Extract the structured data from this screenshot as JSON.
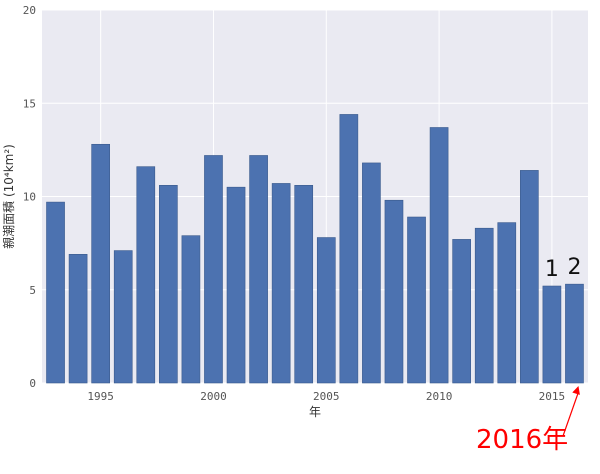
{
  "chart_data": {
    "type": "bar",
    "x": [
      1993,
      1994,
      1995,
      1996,
      1997,
      1998,
      1999,
      2000,
      2001,
      2002,
      2003,
      2004,
      2005,
      2006,
      2007,
      2008,
      2009,
      2010,
      2011,
      2012,
      2013,
      2014,
      2015,
      2016
    ],
    "values": [
      9.7,
      6.9,
      12.8,
      7.1,
      11.6,
      10.6,
      7.9,
      12.2,
      10.5,
      12.2,
      10.7,
      10.6,
      7.8,
      14.4,
      11.8,
      9.8,
      8.9,
      13.7,
      7.7,
      8.3,
      8.6,
      11.4,
      5.2,
      5.3
    ],
    "bar_color": "#4c72b0",
    "background_color": "#eaeaf2",
    "grid": true,
    "grid_color": "#ffffff",
    "xlim": [
      1992.4,
      2016.6
    ],
    "ylim": [
      0,
      20
    ],
    "x_ticks": [
      1995,
      2000,
      2005,
      2010,
      2015
    ],
    "x_tick_labels": [
      "1995",
      "2000",
      "2005",
      "2010",
      "2015"
    ],
    "y_ticks": [
      0,
      5,
      10,
      15,
      20
    ],
    "y_tick_labels": [
      "0",
      "5",
      "10",
      "15",
      "20"
    ],
    "xlabel": "年",
    "ylabel": "親潮面積 (10⁴km²)",
    "annotations": {
      "bar_markers": [
        {
          "x": 2015,
          "text": "1"
        },
        {
          "x": 2016,
          "text": "2"
        }
      ],
      "callout": {
        "text": "2016年",
        "points_to_x": 2016,
        "color": "#ff0000"
      }
    }
  }
}
